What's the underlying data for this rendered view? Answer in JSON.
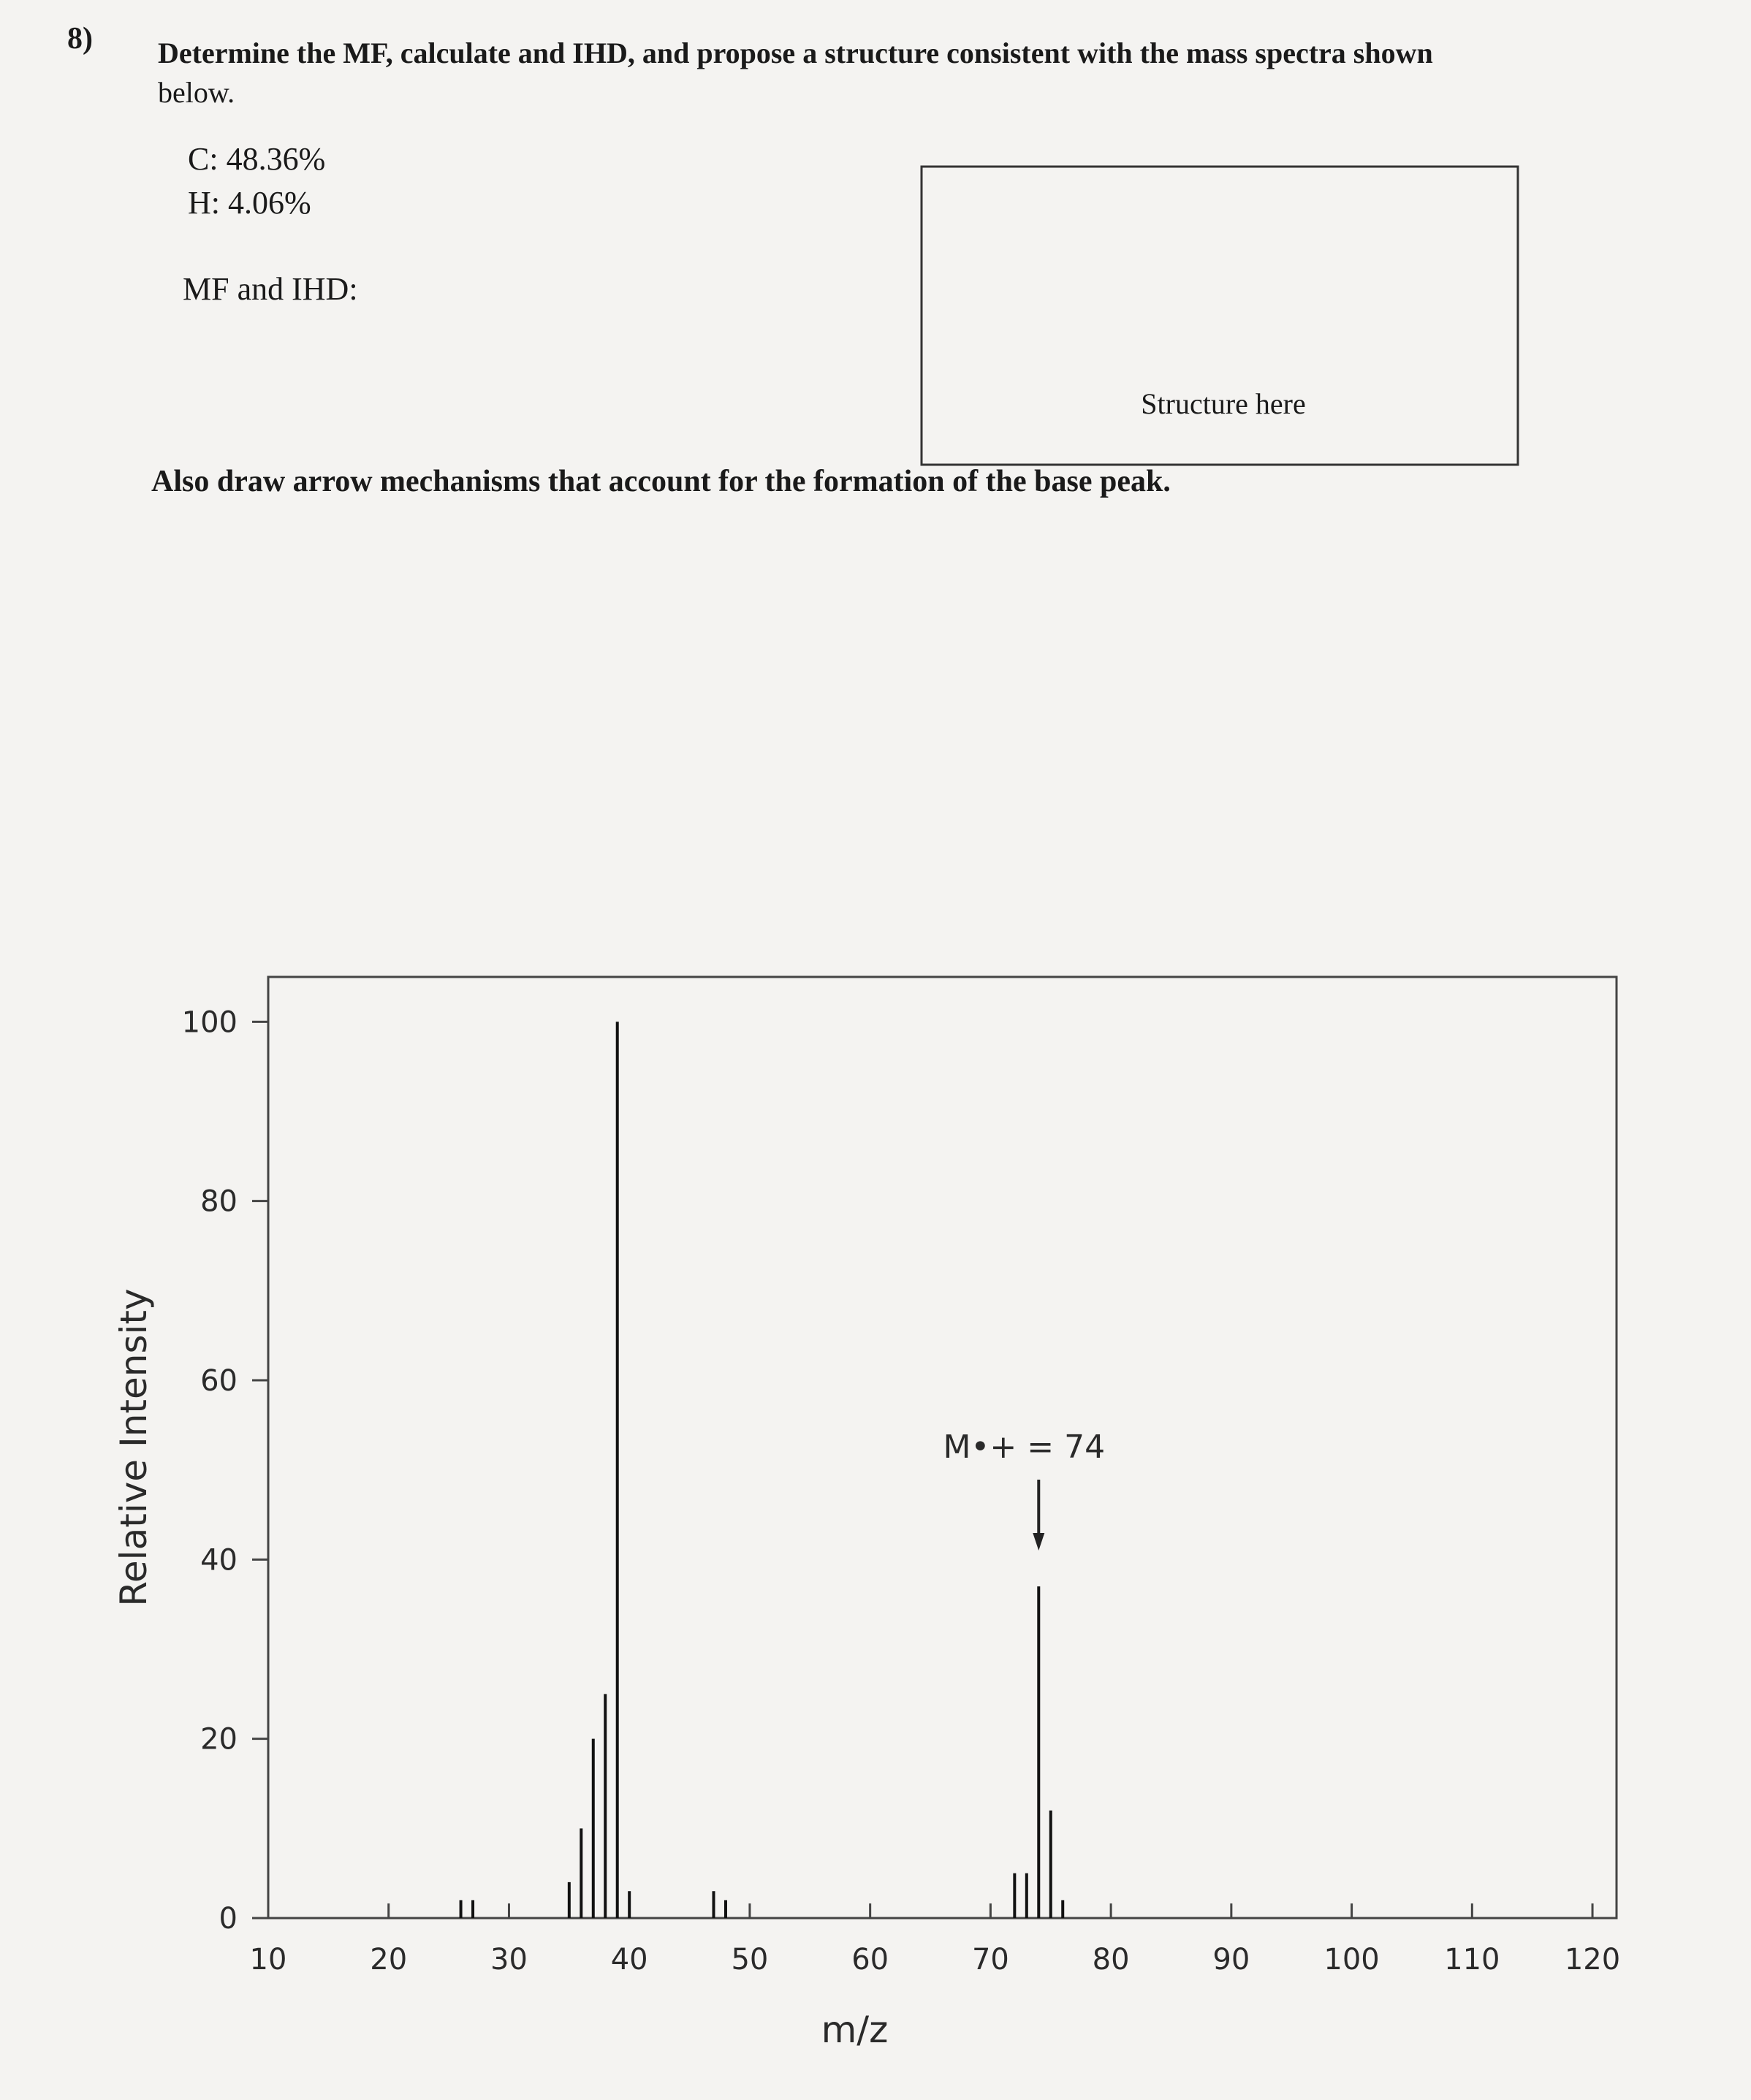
{
  "question_number": "8)",
  "question_line_1": "Determine the MF, calculate and IHD, and propose a structure consistent with the mass spectra shown",
  "question_line_2": "below.",
  "composition": [
    "C: 48.36%",
    "H: 4.06%"
  ],
  "mf_ihd_label": "MF and IHD:",
  "structure_box_label": "Structure here",
  "mechanism_instruction": "Also draw arrow mechanisms that account for the formation of the base peak.",
  "chart_data": {
    "type": "stick",
    "x_label": "m/z",
    "y_label": "Relative Intensity",
    "annotation": "M•+ = 74",
    "annotation_x": 74,
    "x": [
      26,
      27,
      35,
      36,
      37,
      38,
      39,
      40,
      47,
      48,
      72,
      73,
      74,
      75,
      76
    ],
    "values": [
      2,
      2,
      4,
      10,
      20,
      25,
      100,
      3,
      3,
      2,
      5,
      5,
      37,
      12,
      2
    ],
    "color": "#111111",
    "xlim": [
      10,
      122
    ],
    "ylim": [
      0,
      105
    ],
    "xticks": [
      10,
      20,
      30,
      40,
      50,
      60,
      70,
      80,
      90,
      100,
      110,
      120
    ],
    "yticks": [
      0,
      20,
      40,
      60,
      80,
      100
    ]
  }
}
